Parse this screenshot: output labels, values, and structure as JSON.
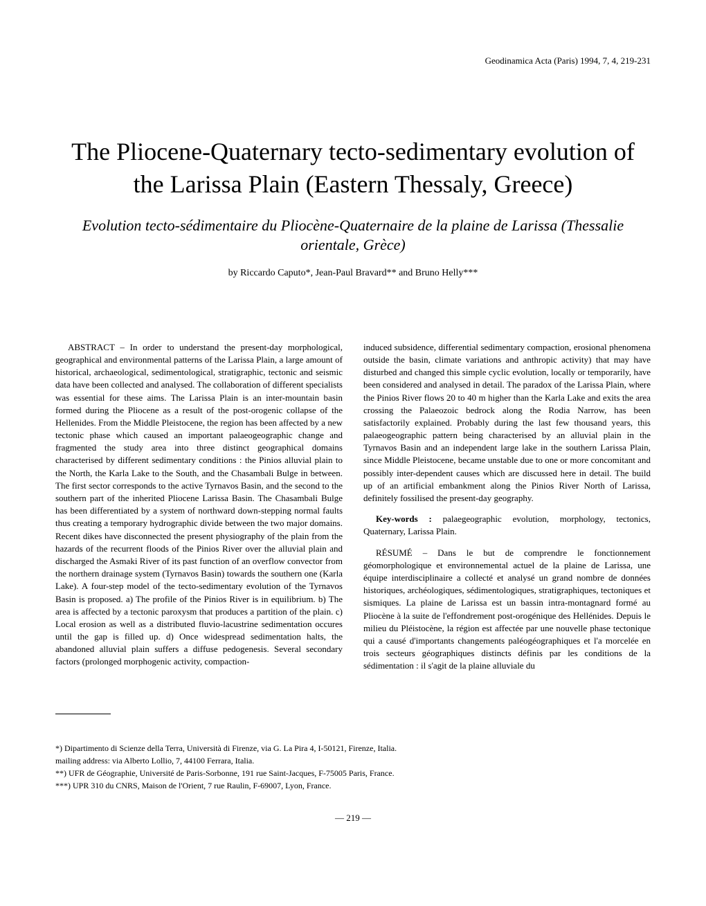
{
  "journal_header": "Geodinamica Acta (Paris) 1994, 7, 4, 219-231",
  "title": "The Pliocene-Quaternary tecto-sedimentary evolution of the Larissa Plain (Eastern Thessaly, Greece)",
  "subtitle": "Evolution tecto-sédimentaire du Pliocène-Quaternaire de la plaine de Larissa (Thessalie orientale, Grèce)",
  "authors": "by Riccardo Caputo*, Jean-Paul Bravard** and Bruno Helly***",
  "abstract_label": "ABSTRACT – ",
  "abstract_text": "In order to understand the present-day morphological, geographical and environmental patterns of the Larissa Plain, a large amount of historical, archaeological, sedimentological, stratigraphic, tectonic and seismic data have been collected and analysed. The collaboration of different specialists was essential for these aims. The Larissa Plain is an inter-mountain basin formed during the Pliocene as a result of the post-orogenic collapse of the Hellenides. From the Middle Pleistocene, the region has been affected by a new tectonic phase which caused an important palaeogeographic change and fragmented the study area into three distinct geographical domains characterised by different sedimentary conditions : the Pinios alluvial plain to the North, the Karla Lake to the South, and the Chasambali Bulge in between. The first sector corresponds to the active Tyrnavos Basin, and the second to the southern part of the inherited Pliocene Larissa Basin. The Chasambali Bulge has been differentiated by a system of northward down-stepping normal faults thus creating a temporary hydrographic divide between the two major domains. Recent dikes have disconnected the present physiography of the plain from the hazards of the recurrent floods of the Pinios River over the alluvial plain and discharged the Asmaki River of its past function of an overflow convector from the northern drainage system (Tyrnavos Basin) towards the southern one (Karla Lake). A four-step model of the tecto-sedimentary evolution of the Tyrnavos Basin is proposed. a) The profile of the Pinios River is in equilibrium. b) The area is affected by a tectonic paroxysm that produces a partition of the plain. c) Local erosion as well as a distributed fluvio-lacustrine sedimentation occures until the gap is filled up. d) Once widespread sedimentation halts, the abandoned alluvial plain suffers a diffuse pedogenesis. Several secondary factors (prolonged morphogenic activity, compaction-",
  "abstract_continuation": "induced subsidence, differential sedimentary compaction, erosional phenomena outside the basin, climate variations and anthropic activity) that may have disturbed and changed this simple cyclic evolution, locally or temporarily, have been considered and analysed in detail. The paradox of the Larissa Plain, where the Pinios River flows 20 to 40 m higher than the Karla Lake and exits the area crossing the Palaeozoic bedrock along the Rodia Narrow, has been satisfactorily explained. Probably during the last few thousand years, this palaeogeographic pattern being characterised by an alluvial plain in the Tyrnavos Basin and an independent large lake in the southern Larissa Plain, since Middle Pleistocene, became unstable due to one or more concomitant and possibly inter-dependent causes which are discussed here in detail. The build up of an artificial embankment along the Pinios River North of Larissa, definitely fossilised the present-day geography.",
  "keywords_label": "Key-words : ",
  "keywords_text": "palaegeographic evolution, morphology, tectonics, Quaternary, Larissa Plain.",
  "resume_label": "RÉSUMÉ – ",
  "resume_text": "Dans le but de comprendre le fonctionnement géomorphologique et environnemental actuel de la plaine de Larissa, une équipe interdisciplinaire a collecté et analysé un grand nombre de données historiques, archéologiques, sédimentologiques, stratigraphiques, tectoniques et sismiques. La plaine de Larissa est un bassin intra-montagnard formé au Pliocène à la suite de l'effondrement post-orogénique des Hellénides. Depuis le milieu du Pléistocène, la région est affectée par une nouvelle phase tectonique qui a causé d'importants changements paléogéographiques et l'a morcelée en trois secteurs géographiques distincts définis par les conditions de la sédimentation : il s'agit de la plaine alluviale du",
  "footnotes": {
    "f1": "*) Dipartimento di Scienze della Terra, Università di Firenze, via G. La Pira 4, I-50121, Firenze, Italia.",
    "f1_mail": "mailing address: via Alberto Lollio, 7, 44100 Ferrara, Italia.",
    "f2": "**) UFR de Géographie, Université de Paris-Sorbonne, 191 rue Saint-Jacques, F-75005 Paris, France.",
    "f3": "***) UPR 310 du CNRS, Maison de l'Orient, 7 rue Raulin, F-69007, Lyon, France."
  },
  "page_number": "—   219   —"
}
